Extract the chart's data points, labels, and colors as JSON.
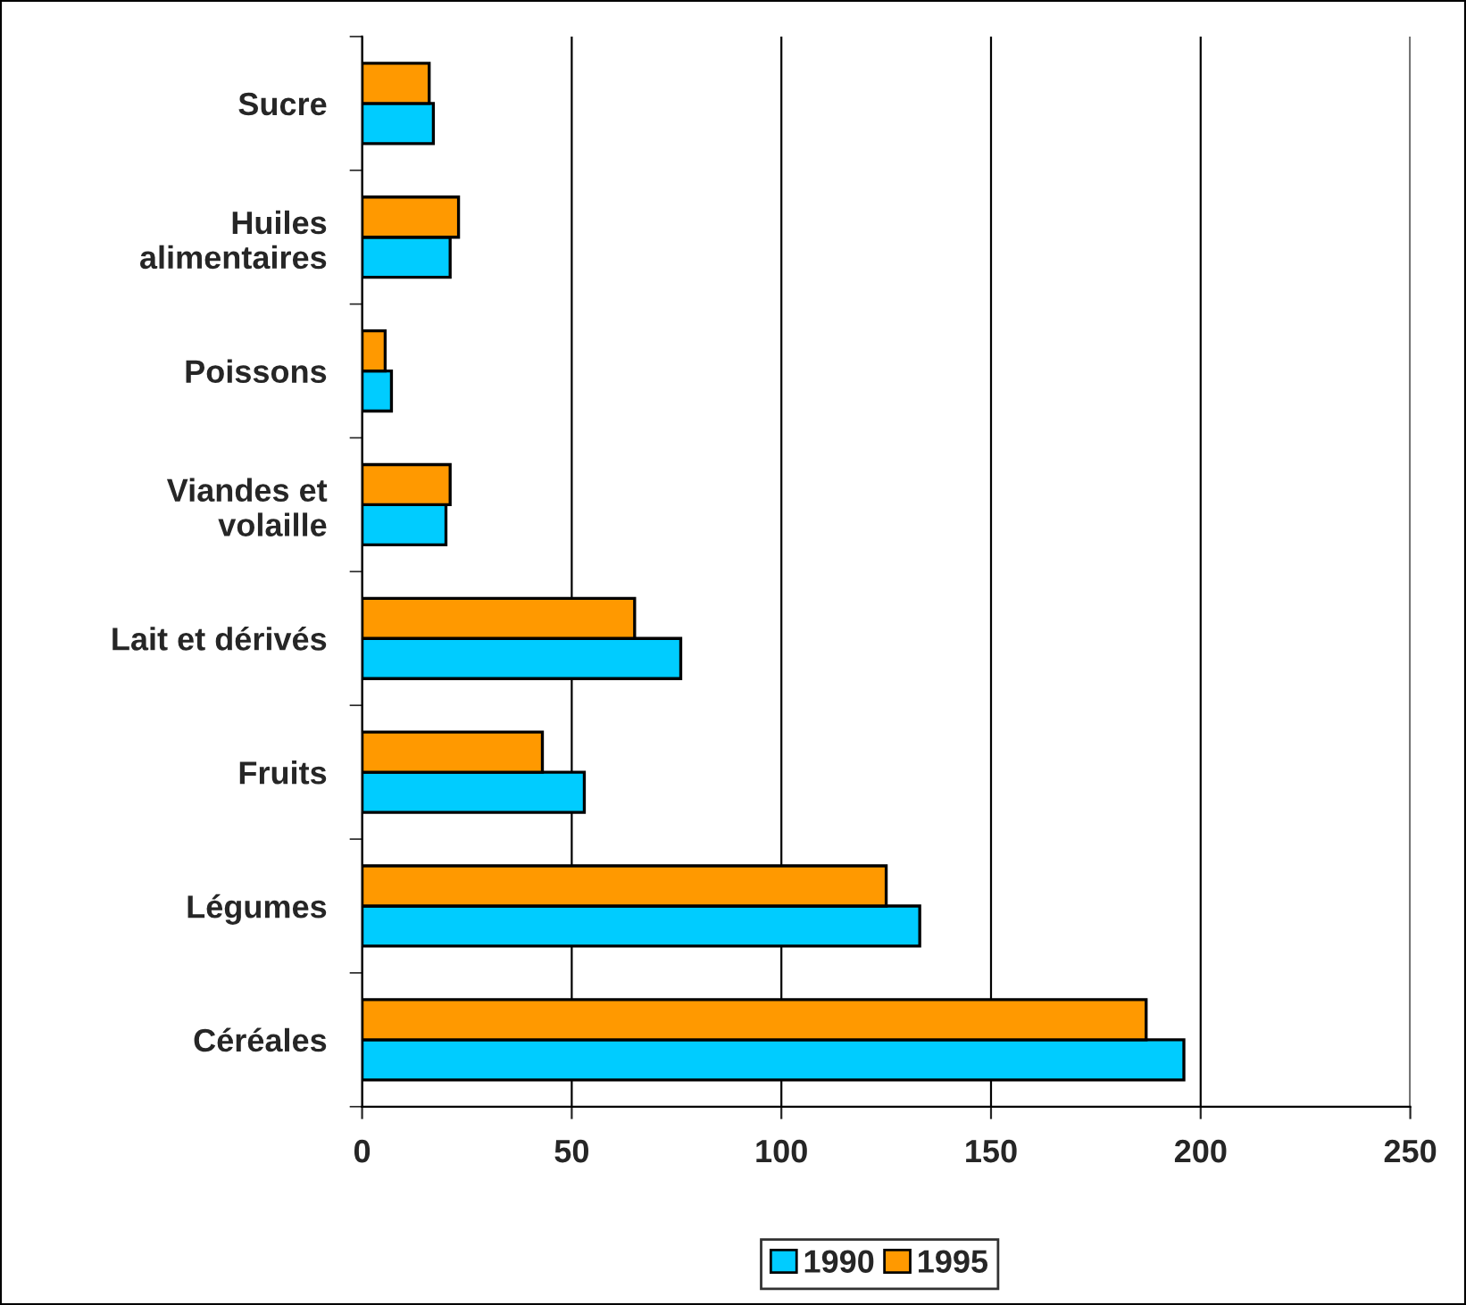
{
  "chart_data": {
    "type": "bar",
    "orientation": "horizontal",
    "categories": [
      "Sucre",
      "Huiles\nalimentaires",
      "Poissons",
      "Viandes et\nvolaille",
      "Lait et dérivés",
      "Fruits",
      "Légumes",
      "Céréales"
    ],
    "series": [
      {
        "name": "1990",
        "color": "#00ccff",
        "values": [
          17,
          21,
          7,
          20,
          76,
          53,
          133,
          196
        ]
      },
      {
        "name": "1995",
        "color": "#ff9900",
        "values": [
          16,
          23,
          5.5,
          21,
          65,
          43,
          125,
          187
        ]
      }
    ],
    "xlim": [
      0,
      250
    ],
    "xticks": [
      0,
      50,
      100,
      150,
      200,
      250
    ],
    "grid": "x",
    "legend": "bottom"
  }
}
